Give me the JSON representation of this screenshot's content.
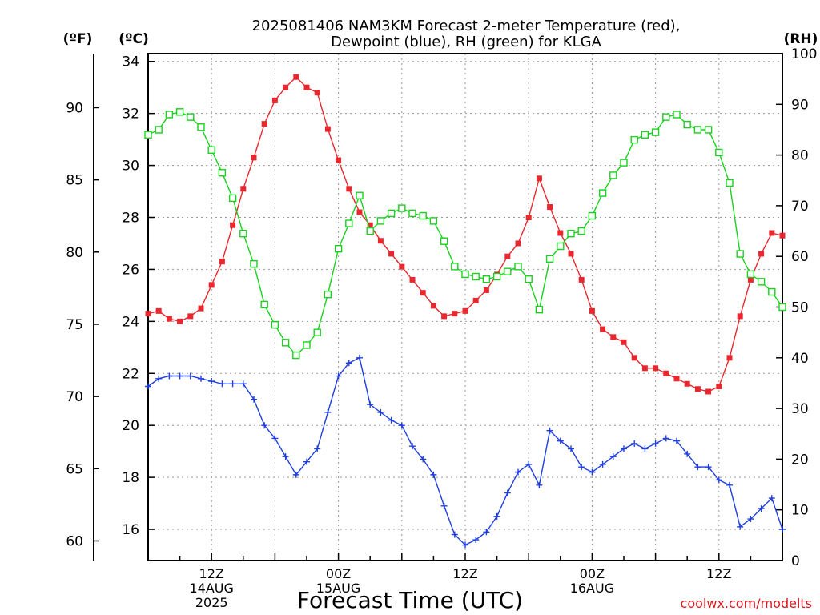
{
  "chart_data": {
    "type": "line",
    "title_line1": "2025081406 NAM3KM Forecast 2-meter Temperature (red),",
    "title_line2": "Dewpoint (blue), RH (green) for KLGA",
    "left_axis_f_label": "(ºF)",
    "left_axis_c_label": "(ºC)",
    "right_axis_label": "(RH)",
    "x_title": "Forecast Time (UTC)",
    "credit": "coolwx.com/modelts",
    "x_range_hours": [
      6,
      66
    ],
    "x_ticks": [
      {
        "hour": 12,
        "lines": [
          "12Z",
          "14AUG",
          "2025"
        ]
      },
      {
        "hour": 24,
        "lines": [
          "00Z",
          "15AUG"
        ]
      },
      {
        "hour": 36,
        "lines": [
          "12Z"
        ]
      },
      {
        "hour": 48,
        "lines": [
          "00Z",
          "16AUG"
        ]
      },
      {
        "hour": 60,
        "lines": [
          "12Z"
        ]
      }
    ],
    "y_celsius": {
      "range": [
        14.8,
        34.3
      ],
      "ticks": [
        16,
        18,
        20,
        22,
        24,
        26,
        28,
        30,
        32,
        34
      ]
    },
    "y_fahrenheit": {
      "ticks": [
        60,
        65,
        70,
        75,
        80,
        85,
        90
      ]
    },
    "y_rh": {
      "range": [
        0,
        100
      ],
      "ticks": [
        0,
        10,
        20,
        30,
        40,
        50,
        60,
        70,
        80,
        90,
        100
      ]
    },
    "hours": [
      6,
      7,
      8,
      9,
      10,
      11,
      12,
      13,
      14,
      15,
      16,
      17,
      18,
      19,
      20,
      21,
      22,
      23,
      24,
      25,
      26,
      27,
      28,
      29,
      30,
      31,
      32,
      33,
      34,
      35,
      36,
      37,
      38,
      39,
      40,
      41,
      42,
      43,
      44,
      45,
      46,
      47,
      48,
      49,
      50,
      51,
      52,
      53,
      54,
      55,
      56,
      57,
      58,
      59,
      60,
      61,
      62,
      63,
      64,
      65,
      66
    ],
    "series": [
      {
        "name": "Temperature",
        "color": "#e8282e",
        "axis": "celsius",
        "marker": "filled-square",
        "values": [
          24.3,
          24.4,
          24.1,
          24.0,
          24.2,
          24.5,
          25.4,
          26.3,
          27.7,
          29.1,
          30.3,
          31.6,
          32.5,
          33.0,
          33.4,
          33.0,
          32.8,
          31.4,
          30.2,
          29.1,
          28.2,
          27.7,
          27.1,
          26.6,
          26.1,
          25.6,
          25.1,
          24.6,
          24.2,
          24.3,
          24.4,
          24.8,
          25.2,
          25.8,
          26.5,
          27.0,
          28.0,
          29.5,
          28.4,
          27.4,
          26.6,
          25.6,
          24.4,
          23.7,
          23.4,
          23.2,
          22.6,
          22.2,
          22.2,
          22.0,
          21.8,
          21.6,
          21.4,
          21.3,
          21.5,
          22.6,
          24.2,
          25.6,
          26.6,
          27.4,
          27.3
        ]
      },
      {
        "name": "Dewpoint",
        "color": "#1f3ee0",
        "axis": "celsius",
        "marker": "plus",
        "values": [
          21.5,
          21.8,
          21.9,
          21.9,
          21.9,
          21.8,
          21.7,
          21.6,
          21.6,
          21.6,
          21.0,
          20.0,
          19.5,
          18.8,
          18.1,
          18.6,
          19.1,
          20.5,
          21.9,
          22.4,
          22.6,
          20.8,
          20.5,
          20.2,
          20.0,
          19.2,
          18.7,
          18.1,
          16.9,
          15.8,
          15.4,
          15.6,
          15.9,
          16.5,
          17.4,
          18.2,
          18.5,
          17.7,
          19.8,
          19.4,
          19.1,
          18.4,
          18.2,
          18.5,
          18.8,
          19.1,
          19.3,
          19.1,
          19.3,
          19.5,
          19.4,
          18.9,
          18.4,
          18.4,
          17.9,
          17.7,
          16.1,
          16.4,
          16.8,
          17.2,
          16.0
        ]
      },
      {
        "name": "RH",
        "color": "#19d11e",
        "axis": "rh",
        "marker": "open-square",
        "values": [
          84,
          85,
          88,
          88.5,
          87.5,
          85.5,
          81,
          76.5,
          71.5,
          64.5,
          58.5,
          50.5,
          46.5,
          43,
          40.5,
          42.5,
          45,
          52.5,
          61.5,
          66.5,
          72,
          65,
          67,
          68.5,
          69.5,
          68.5,
          68,
          67,
          63,
          58,
          56.5,
          56,
          55.5,
          56,
          57,
          58,
          55.5,
          49.5,
          59.5,
          62,
          64.5,
          65,
          68,
          72.5,
          76,
          78.5,
          83,
          84,
          84.5,
          87.5,
          88,
          86,
          85,
          85,
          80.5,
          74.5,
          60.5,
          56.5,
          55,
          53,
          50
        ]
      }
    ]
  }
}
